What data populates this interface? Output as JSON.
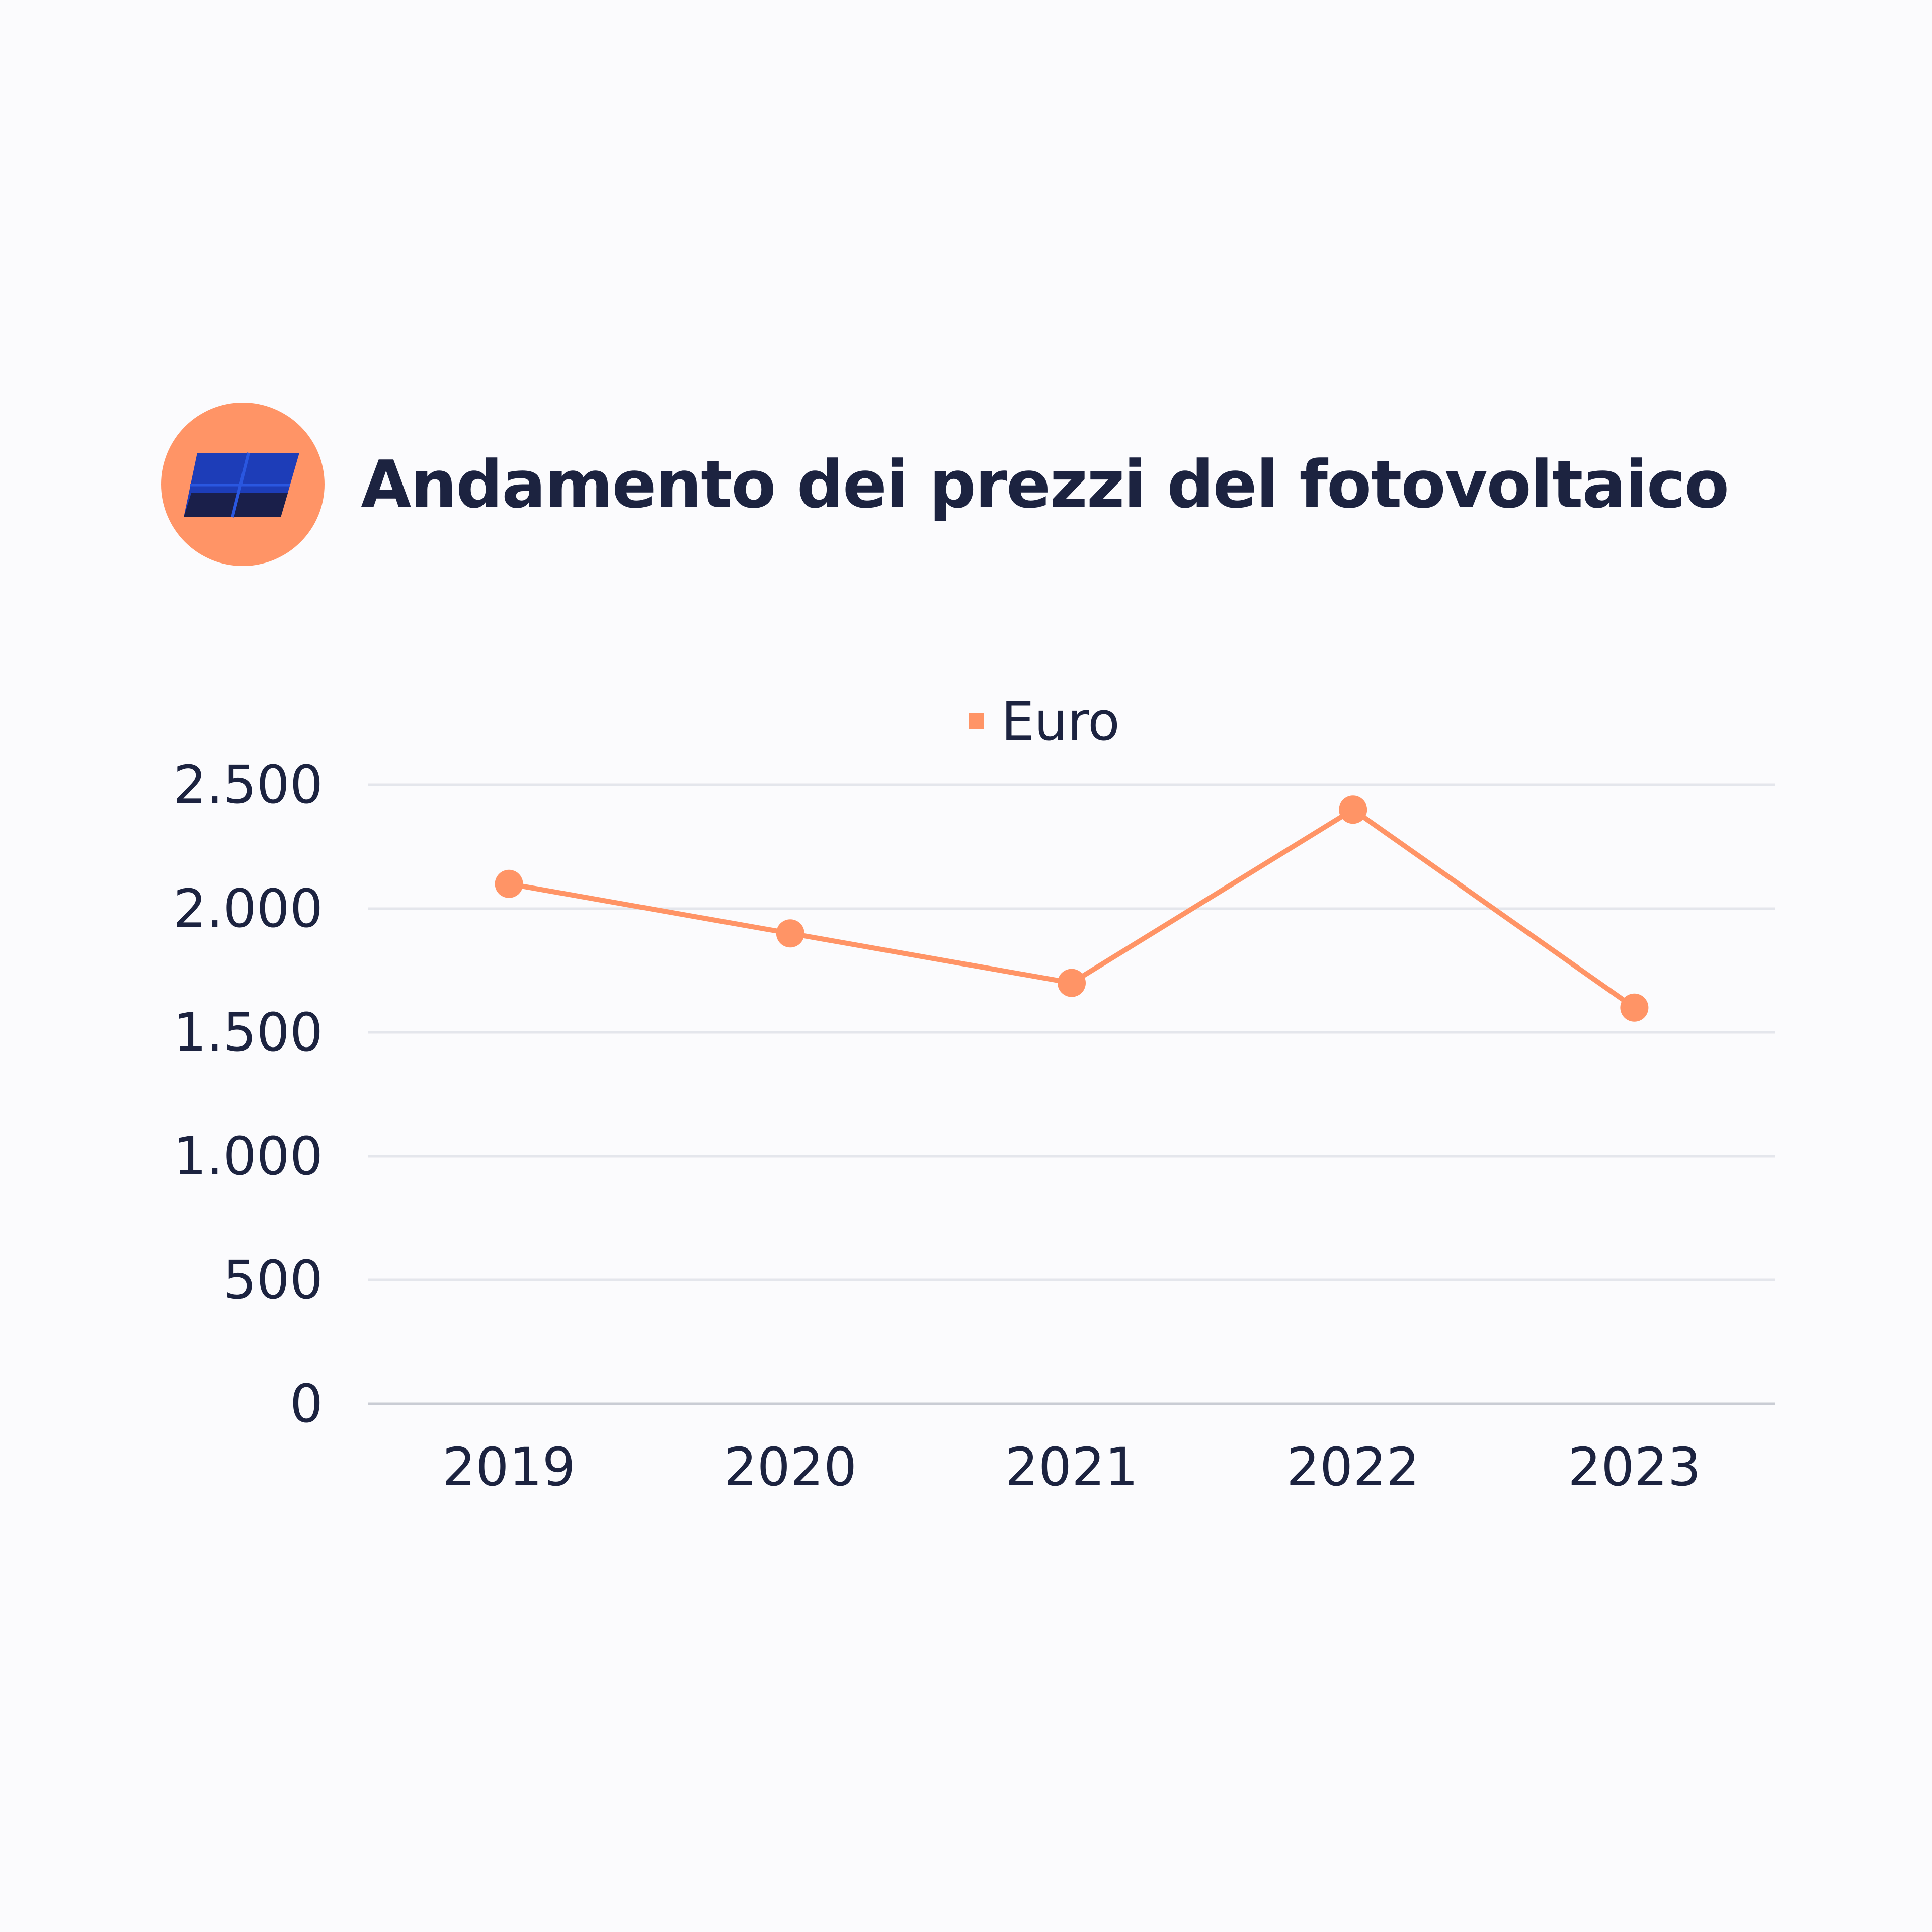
{
  "header": {
    "title": "Andamento dei prezzi del fotovoltaico",
    "icon": "solar-panel-icon",
    "badge_color": "#ff9466"
  },
  "chart_data": {
    "type": "line",
    "categories": [
      "2019",
      "2020",
      "2021",
      "2022",
      "2023"
    ],
    "series": [
      {
        "name": "Euro",
        "values": [
          2100,
          1900,
          1700,
          2400,
          1600
        ],
        "color": "#ff9466"
      }
    ],
    "ylim": [
      0,
      2500
    ],
    "y_ticks": [
      0,
      500,
      1000,
      1500,
      2000,
      2500
    ],
    "y_tick_labels": [
      "0",
      "500",
      "1.000",
      "1.500",
      "2.000",
      "2.500"
    ],
    "xlabel": "",
    "ylabel": "",
    "grid": true,
    "legend": "top-center"
  }
}
